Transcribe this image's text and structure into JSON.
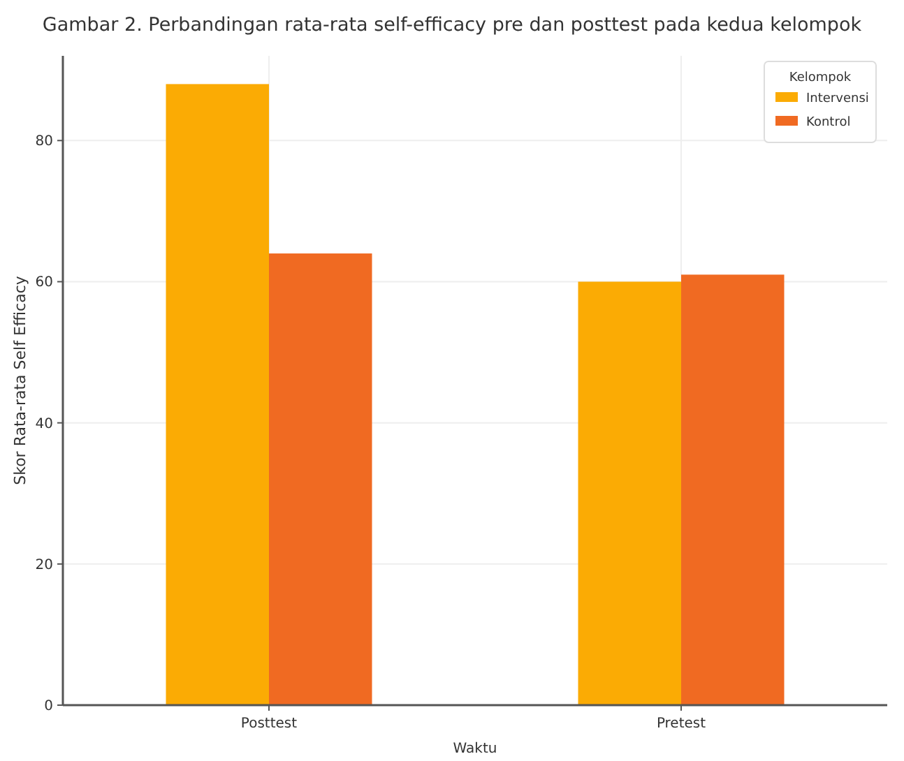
{
  "chart_data": {
    "type": "bar",
    "title": "Gambar 2. Perbandingan rata-rata self-efficacy pre dan posttest pada kedua kelompok",
    "xlabel": "Waktu",
    "ylabel": "Skor Rata-rata Self Efficacy",
    "legend_title": "Kelompok",
    "categories": [
      "Posttest",
      "Pretest"
    ],
    "series": [
      {
        "name": "Intervensi",
        "color": "#fbab04",
        "values": [
          88,
          60
        ]
      },
      {
        "name": "Kontrol",
        "color": "#f06a22",
        "values": [
          64,
          61
        ]
      }
    ],
    "ylim": [
      0,
      92
    ],
    "yticks": [
      0,
      20,
      40,
      60,
      80
    ],
    "grid": true,
    "legend": "top right"
  }
}
